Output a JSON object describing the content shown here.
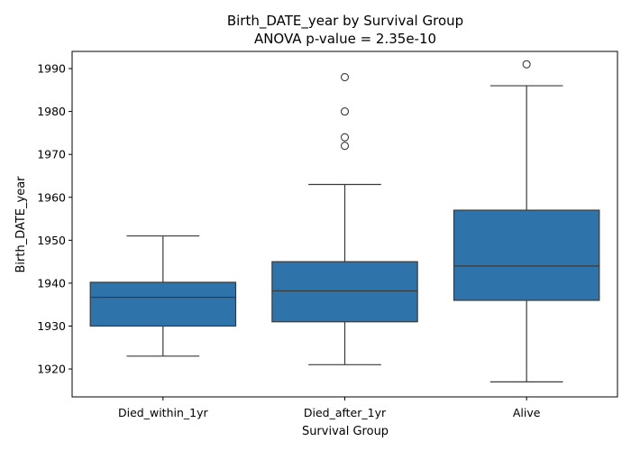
{
  "chart_data": {
    "type": "box",
    "title": "Birth_DATE_year by Survival Group",
    "subtitle": "ANOVA p-value = 2.35e-10",
    "xlabel": "Survival Group",
    "ylabel": "Birth_DATE_year",
    "ylim": [
      1913.5,
      1994
    ],
    "yticks": [
      1920,
      1930,
      1940,
      1950,
      1960,
      1970,
      1980,
      1990
    ],
    "categories": [
      "Died_within_1yr",
      "Died_after_1yr",
      "Alive"
    ],
    "box_color": "#2f73ab",
    "line_color": "#3a3a3a",
    "boxes": [
      {
        "category": "Died_within_1yr",
        "whisker_low": 1923,
        "q1": 1930,
        "median": 1936.7,
        "q3": 1940.2,
        "whisker_high": 1951,
        "outliers": []
      },
      {
        "category": "Died_after_1yr",
        "whisker_low": 1921,
        "q1": 1931,
        "median": 1938.2,
        "q3": 1945,
        "whisker_high": 1963,
        "outliers": [
          1972,
          1974,
          1980,
          1988
        ]
      },
      {
        "category": "Alive",
        "whisker_low": 1917,
        "q1": 1936,
        "median": 1944,
        "q3": 1957,
        "whisker_high": 1986,
        "outliers": [
          1991
        ]
      }
    ]
  }
}
